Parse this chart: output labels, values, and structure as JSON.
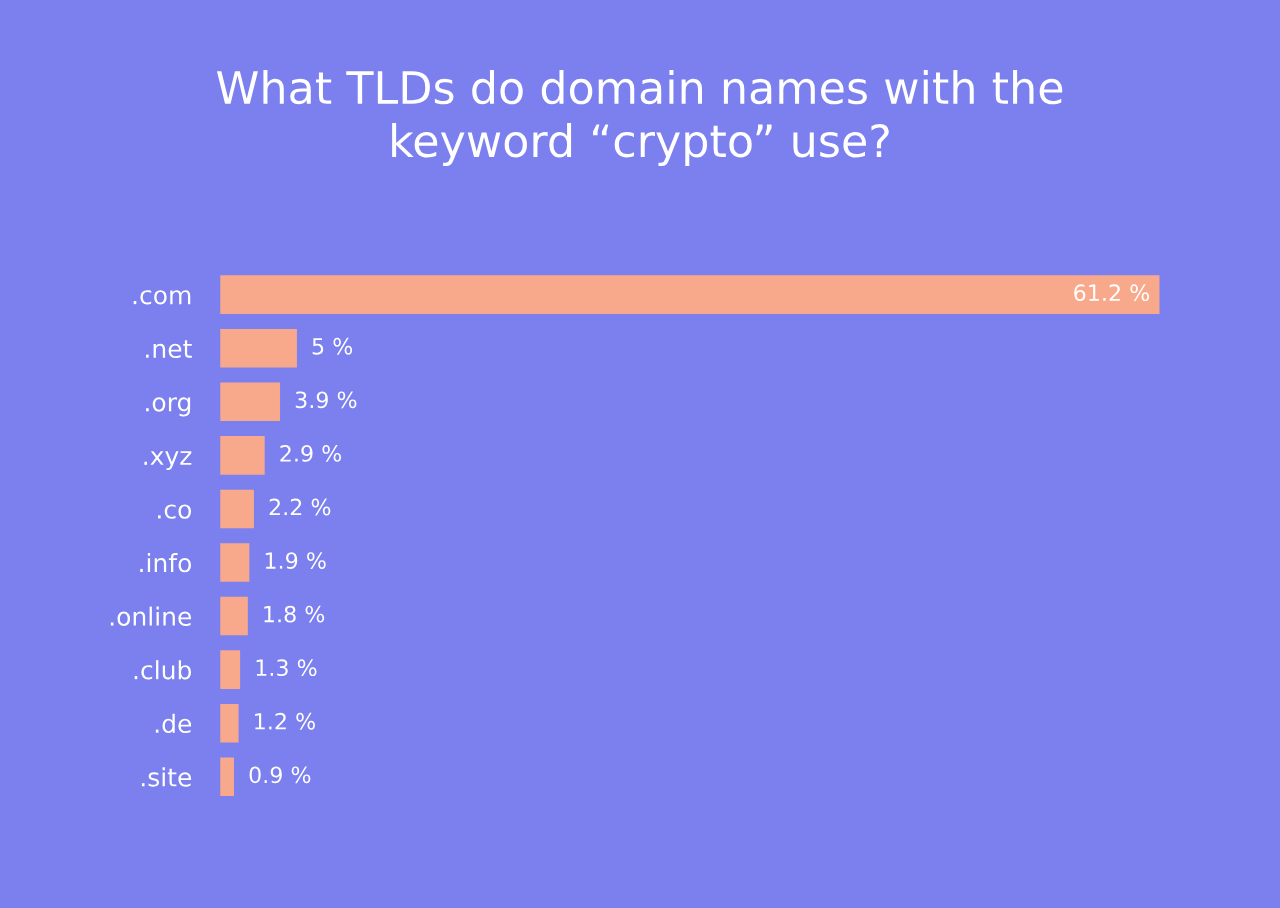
{
  "chart_data": {
    "type": "bar",
    "orientation": "horizontal",
    "title": "What TLDs do domain names with the\nkeyword “crypto” use?",
    "categories": [
      ".com",
      ".net",
      ".org",
      ".xyz",
      ".co",
      ".info",
      ".online",
      ".club",
      ".de",
      ".site"
    ],
    "values": [
      61.2,
      5,
      3.9,
      2.9,
      2.2,
      1.9,
      1.8,
      1.3,
      1.2,
      0.9
    ],
    "value_labels": [
      "61.2 %",
      "5 %",
      "3.9 %",
      "2.9 %",
      "2.2 %",
      "1.9 %",
      "1.8 %",
      "1.3 %",
      "1.2 %",
      "0.9 %"
    ],
    "color": "#f9a98b",
    "grid": false,
    "legend": false
  }
}
